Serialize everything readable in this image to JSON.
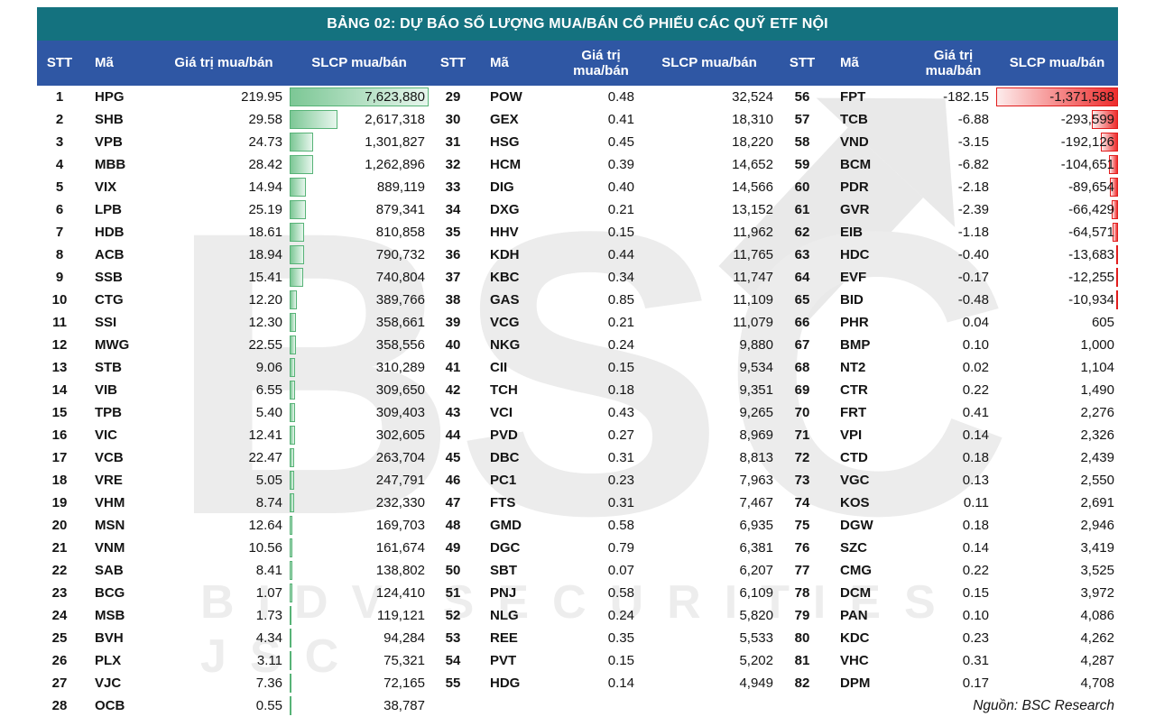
{
  "chart_data": {
    "type": "table",
    "title": "BẢNG 02: DỰ BÁO SỐ LƯỢNG MUA/BÁN CỔ PHIẾU CÁC QUỸ ETF NỘI",
    "column_headers": {
      "stt": "STT",
      "ma": "Mã",
      "gia_tri": "Giá trị mua/bán",
      "slcp": "SLCP mua/bán"
    },
    "source": "Nguồn: BSC Research",
    "databar_note": "green positive bars scaled to max 7,623,880; red negative bars scaled to min -1,371,588",
    "groups": [
      {
        "rows": [
          {
            "stt": "1",
            "ma": "HPG",
            "gia_tri": "219.95",
            "slcp": "7,623,880"
          },
          {
            "stt": "2",
            "ma": "SHB",
            "gia_tri": "29.58",
            "slcp": "2,617,318"
          },
          {
            "stt": "3",
            "ma": "VPB",
            "gia_tri": "24.73",
            "slcp": "1,301,827"
          },
          {
            "stt": "4",
            "ma": "MBB",
            "gia_tri": "28.42",
            "slcp": "1,262,896"
          },
          {
            "stt": "5",
            "ma": "VIX",
            "gia_tri": "14.94",
            "slcp": "889,119"
          },
          {
            "stt": "6",
            "ma": "LPB",
            "gia_tri": "25.19",
            "slcp": "879,341"
          },
          {
            "stt": "7",
            "ma": "HDB",
            "gia_tri": "18.61",
            "slcp": "810,858"
          },
          {
            "stt": "8",
            "ma": "ACB",
            "gia_tri": "18.94",
            "slcp": "790,732"
          },
          {
            "stt": "9",
            "ma": "SSB",
            "gia_tri": "15.41",
            "slcp": "740,804"
          },
          {
            "stt": "10",
            "ma": "CTG",
            "gia_tri": "12.20",
            "slcp": "389,766"
          },
          {
            "stt": "11",
            "ma": "SSI",
            "gia_tri": "12.30",
            "slcp": "358,661"
          },
          {
            "stt": "12",
            "ma": "MWG",
            "gia_tri": "22.55",
            "slcp": "358,556"
          },
          {
            "stt": "13",
            "ma": "STB",
            "gia_tri": "9.06",
            "slcp": "310,289"
          },
          {
            "stt": "14",
            "ma": "VIB",
            "gia_tri": "6.55",
            "slcp": "309,650"
          },
          {
            "stt": "15",
            "ma": "TPB",
            "gia_tri": "5.40",
            "slcp": "309,403"
          },
          {
            "stt": "16",
            "ma": "VIC",
            "gia_tri": "12.41",
            "slcp": "302,605"
          },
          {
            "stt": "17",
            "ma": "VCB",
            "gia_tri": "22.47",
            "slcp": "263,704"
          },
          {
            "stt": "18",
            "ma": "VRE",
            "gia_tri": "5.05",
            "slcp": "247,791"
          },
          {
            "stt": "19",
            "ma": "VHM",
            "gia_tri": "8.74",
            "slcp": "232,330"
          },
          {
            "stt": "20",
            "ma": "MSN",
            "gia_tri": "12.64",
            "slcp": "169,703"
          },
          {
            "stt": "21",
            "ma": "VNM",
            "gia_tri": "10.56",
            "slcp": "161,674"
          },
          {
            "stt": "22",
            "ma": "SAB",
            "gia_tri": "8.41",
            "slcp": "138,802"
          },
          {
            "stt": "23",
            "ma": "BCG",
            "gia_tri": "1.07",
            "slcp": "124,410"
          },
          {
            "stt": "24",
            "ma": "MSB",
            "gia_tri": "1.73",
            "slcp": "119,121"
          },
          {
            "stt": "25",
            "ma": "BVH",
            "gia_tri": "4.34",
            "slcp": "94,284"
          },
          {
            "stt": "26",
            "ma": "PLX",
            "gia_tri": "3.11",
            "slcp": "75,321"
          },
          {
            "stt": "27",
            "ma": "VJC",
            "gia_tri": "7.36",
            "slcp": "72,165"
          },
          {
            "stt": "28",
            "ma": "OCB",
            "gia_tri": "0.55",
            "slcp": "38,787"
          }
        ]
      },
      {
        "rows": [
          {
            "stt": "29",
            "ma": "POW",
            "gia_tri": "0.48",
            "slcp": "32,524"
          },
          {
            "stt": "30",
            "ma": "GEX",
            "gia_tri": "0.41",
            "slcp": "18,310"
          },
          {
            "stt": "31",
            "ma": "HSG",
            "gia_tri": "0.45",
            "slcp": "18,220"
          },
          {
            "stt": "32",
            "ma": "HCM",
            "gia_tri": "0.39",
            "slcp": "14,652"
          },
          {
            "stt": "33",
            "ma": "DIG",
            "gia_tri": "0.40",
            "slcp": "14,566"
          },
          {
            "stt": "34",
            "ma": "DXG",
            "gia_tri": "0.21",
            "slcp": "13,152"
          },
          {
            "stt": "35",
            "ma": "HHV",
            "gia_tri": "0.15",
            "slcp": "11,962"
          },
          {
            "stt": "36",
            "ma": "KDH",
            "gia_tri": "0.44",
            "slcp": "11,765"
          },
          {
            "stt": "37",
            "ma": "KBC",
            "gia_tri": "0.34",
            "slcp": "11,747"
          },
          {
            "stt": "38",
            "ma": "GAS",
            "gia_tri": "0.85",
            "slcp": "11,109"
          },
          {
            "stt": "39",
            "ma": "VCG",
            "gia_tri": "0.21",
            "slcp": "11,079"
          },
          {
            "stt": "40",
            "ma": "NKG",
            "gia_tri": "0.24",
            "slcp": "9,880"
          },
          {
            "stt": "41",
            "ma": "CII",
            "gia_tri": "0.15",
            "slcp": "9,534"
          },
          {
            "stt": "42",
            "ma": "TCH",
            "gia_tri": "0.18",
            "slcp": "9,351"
          },
          {
            "stt": "43",
            "ma": "VCI",
            "gia_tri": "0.43",
            "slcp": "9,265"
          },
          {
            "stt": "44",
            "ma": "PVD",
            "gia_tri": "0.27",
            "slcp": "8,969"
          },
          {
            "stt": "45",
            "ma": "DBC",
            "gia_tri": "0.31",
            "slcp": "8,813"
          },
          {
            "stt": "46",
            "ma": "PC1",
            "gia_tri": "0.23",
            "slcp": "7,963"
          },
          {
            "stt": "47",
            "ma": "FTS",
            "gia_tri": "0.31",
            "slcp": "7,467"
          },
          {
            "stt": "48",
            "ma": "GMD",
            "gia_tri": "0.58",
            "slcp": "6,935"
          },
          {
            "stt": "49",
            "ma": "DGC",
            "gia_tri": "0.79",
            "slcp": "6,381"
          },
          {
            "stt": "50",
            "ma": "SBT",
            "gia_tri": "0.07",
            "slcp": "6,207"
          },
          {
            "stt": "51",
            "ma": "PNJ",
            "gia_tri": "0.58",
            "slcp": "6,109"
          },
          {
            "stt": "52",
            "ma": "NLG",
            "gia_tri": "0.24",
            "slcp": "5,820"
          },
          {
            "stt": "53",
            "ma": "REE",
            "gia_tri": "0.35",
            "slcp": "5,533"
          },
          {
            "stt": "54",
            "ma": "PVT",
            "gia_tri": "0.15",
            "slcp": "5,202"
          },
          {
            "stt": "55",
            "ma": "HDG",
            "gia_tri": "0.14",
            "slcp": "4,949"
          }
        ]
      },
      {
        "rows": [
          {
            "stt": "56",
            "ma": "FPT",
            "gia_tri": "-182.15",
            "slcp": "-1,371,588"
          },
          {
            "stt": "57",
            "ma": "TCB",
            "gia_tri": "-6.88",
            "slcp": "-293,599"
          },
          {
            "stt": "58",
            "ma": "VND",
            "gia_tri": "-3.15",
            "slcp": "-192,126"
          },
          {
            "stt": "59",
            "ma": "BCM",
            "gia_tri": "-6.82",
            "slcp": "-104,651"
          },
          {
            "stt": "60",
            "ma": "PDR",
            "gia_tri": "-2.18",
            "slcp": "-89,654"
          },
          {
            "stt": "61",
            "ma": "GVR",
            "gia_tri": "-2.39",
            "slcp": "-66,429"
          },
          {
            "stt": "62",
            "ma": "EIB",
            "gia_tri": "-1.18",
            "slcp": "-64,571"
          },
          {
            "stt": "63",
            "ma": "HDC",
            "gia_tri": "-0.40",
            "slcp": "-13,683"
          },
          {
            "stt": "64",
            "ma": "EVF",
            "gia_tri": "-0.17",
            "slcp": "-12,255"
          },
          {
            "stt": "65",
            "ma": "BID",
            "gia_tri": "-0.48",
            "slcp": "-10,934"
          },
          {
            "stt": "66",
            "ma": "PHR",
            "gia_tri": "0.04",
            "slcp": "605"
          },
          {
            "stt": "67",
            "ma": "BMP",
            "gia_tri": "0.10",
            "slcp": "1,000"
          },
          {
            "stt": "68",
            "ma": "NT2",
            "gia_tri": "0.02",
            "slcp": "1,104"
          },
          {
            "stt": "69",
            "ma": "CTR",
            "gia_tri": "0.22",
            "slcp": "1,490"
          },
          {
            "stt": "70",
            "ma": "FRT",
            "gia_tri": "0.41",
            "slcp": "2,276"
          },
          {
            "stt": "71",
            "ma": "VPI",
            "gia_tri": "0.14",
            "slcp": "2,326"
          },
          {
            "stt": "72",
            "ma": "CTD",
            "gia_tri": "0.18",
            "slcp": "2,439"
          },
          {
            "stt": "73",
            "ma": "VGC",
            "gia_tri": "0.13",
            "slcp": "2,550"
          },
          {
            "stt": "74",
            "ma": "KOS",
            "gia_tri": "0.11",
            "slcp": "2,691"
          },
          {
            "stt": "75",
            "ma": "DGW",
            "gia_tri": "0.18",
            "slcp": "2,946"
          },
          {
            "stt": "76",
            "ma": "SZC",
            "gia_tri": "0.14",
            "slcp": "3,419"
          },
          {
            "stt": "77",
            "ma": "CMG",
            "gia_tri": "0.22",
            "slcp": "3,525"
          },
          {
            "stt": "78",
            "ma": "DCM",
            "gia_tri": "0.15",
            "slcp": "3,972"
          },
          {
            "stt": "79",
            "ma": "PAN",
            "gia_tri": "0.10",
            "slcp": "4,086"
          },
          {
            "stt": "80",
            "ma": "KDC",
            "gia_tri": "0.23",
            "slcp": "4,262"
          },
          {
            "stt": "81",
            "ma": "VHC",
            "gia_tri": "0.31",
            "slcp": "4,287"
          },
          {
            "stt": "82",
            "ma": "DPM",
            "gia_tri": "0.17",
            "slcp": "4,708"
          }
        ]
      }
    ]
  },
  "watermark": {
    "text": "BSC",
    "subtext": "BIDV SECURITIES JSC"
  },
  "colors": {
    "title_bg": "#14727f",
    "header_bg": "#2f57a4",
    "bar_green_start": "#7cc795",
    "bar_green_end": "#e7f6ed",
    "bar_green_border": "#57b377",
    "bar_red_start": "#fdecec",
    "bar_red_end": "#ee2d2d",
    "bar_red_border": "#e11c1c"
  }
}
